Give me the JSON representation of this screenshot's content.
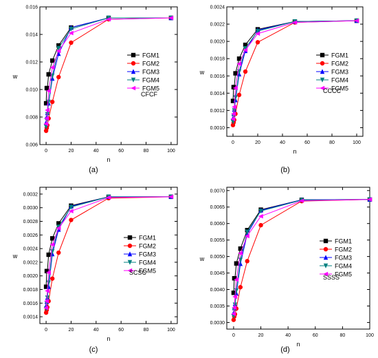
{
  "chart_data": [
    {
      "type": "line",
      "panel_label": "(a)",
      "plot_label": "CFCF",
      "xlabel": "n",
      "ylabel": "w",
      "xlim": [
        -5,
        105
      ],
      "ylim": [
        0.006,
        0.016
      ],
      "xticks": [
        "0",
        "20",
        "40",
        "60",
        "80",
        "100"
      ],
      "yticks": [
        "0.006",
        "0.008",
        "0.010",
        "0.012",
        "0.014",
        "0.016"
      ],
      "x": [
        0,
        0.5,
        1,
        2,
        5,
        10,
        20,
        50,
        100
      ],
      "series": [
        {
          "name": "FGM1",
          "values": [
            0.009,
            0.0101,
            0.0101,
            0.0111,
            0.0121,
            0.0132,
            0.0145,
            0.0152,
            0.0152
          ]
        },
        {
          "name": "FGM2",
          "values": [
            0.007,
            0.0072,
            0.0074,
            0.0079,
            0.0091,
            0.0109,
            0.0134,
            0.0151,
            0.0152
          ]
        },
        {
          "name": "FGM3",
          "values": [
            0.0076,
            0.008,
            0.0083,
            0.009,
            0.0108,
            0.0126,
            0.0145,
            0.0152,
            0.0152
          ]
        },
        {
          "name": "FGM4",
          "values": [
            0.0073,
            0.0078,
            0.0082,
            0.0091,
            0.011,
            0.013,
            0.0144,
            0.0152,
            0.0152
          ]
        },
        {
          "name": "FGM5",
          "values": [
            0.0075,
            0.0079,
            0.0085,
            0.0099,
            0.0116,
            0.0128,
            0.0141,
            0.0151,
            0.0152
          ]
        }
      ]
    },
    {
      "type": "line",
      "panel_label": "(b)",
      "plot_label": "CCCC",
      "xlabel": "n",
      "ylabel": "w",
      "xlim": [
        -5,
        105
      ],
      "ylim": [
        0.0009,
        0.0024
      ],
      "xticks": [
        "0",
        "20",
        "40",
        "60",
        "80",
        "100"
      ],
      "yticks": [
        "0.0010",
        "0.0012",
        "0.0014",
        "0.0016",
        "0.0018",
        "0.0020",
        "0.0022",
        "0.0024"
      ],
      "x": [
        0,
        0.5,
        1,
        2,
        5,
        10,
        20,
        50,
        100
      ],
      "series": [
        {
          "name": "FGM1",
          "values": [
            0.00131,
            0.00147,
            0.00147,
            0.00163,
            0.0018,
            0.00196,
            0.00214,
            0.00223,
            0.00224
          ]
        },
        {
          "name": "FGM2",
          "values": [
            0.00103,
            0.00106,
            0.00109,
            0.00116,
            0.00138,
            0.00165,
            0.00199,
            0.00222,
            0.00224
          ]
        },
        {
          "name": "FGM3",
          "values": [
            0.00111,
            0.00116,
            0.00121,
            0.00132,
            0.00162,
            0.00189,
            0.00213,
            0.00223,
            0.00224
          ]
        },
        {
          "name": "FGM4",
          "values": [
            0.00107,
            0.00114,
            0.0012,
            0.00135,
            0.00165,
            0.00192,
            0.00212,
            0.00223,
            0.00224
          ]
        },
        {
          "name": "FGM5",
          "values": [
            0.0011,
            0.00116,
            0.00124,
            0.00146,
            0.00174,
            0.0019,
            0.00209,
            0.00222,
            0.00224
          ]
        }
      ]
    },
    {
      "type": "line",
      "panel_label": "(c)",
      "plot_label": "SCSC",
      "xlabel": "n",
      "ylabel": "w",
      "xlim": [
        -5,
        105
      ],
      "ylim": [
        0.0013,
        0.0033
      ],
      "xticks": [
        "0",
        "20",
        "40",
        "60",
        "80",
        "100"
      ],
      "yticks": [
        "0.0014",
        "0.0016",
        "0.0018",
        "0.0020",
        "0.0022",
        "0.0024",
        "0.0026",
        "0.0028",
        "0.0030",
        "0.0032"
      ],
      "x": [
        0,
        0.5,
        1,
        2,
        5,
        10,
        20,
        50,
        100
      ],
      "series": [
        {
          "name": "FGM1",
          "values": [
            0.00184,
            0.00207,
            0.00207,
            0.00231,
            0.00255,
            0.00277,
            0.00303,
            0.00316,
            0.00316
          ]
        },
        {
          "name": "FGM2",
          "values": [
            0.00146,
            0.0015,
            0.00154,
            0.00163,
            0.00196,
            0.00234,
            0.00282,
            0.00314,
            0.00316
          ]
        },
        {
          "name": "FGM3",
          "values": [
            0.00156,
            0.00162,
            0.00168,
            0.00184,
            0.00232,
            0.00268,
            0.00302,
            0.00316,
            0.00316
          ]
        },
        {
          "name": "FGM4",
          "values": [
            0.00152,
            0.0016,
            0.00168,
            0.0019,
            0.00236,
            0.00272,
            0.00301,
            0.00316,
            0.00316
          ]
        },
        {
          "name": "FGM5",
          "values": [
            0.00153,
            0.00163,
            0.00178,
            0.00205,
            0.00246,
            0.0027,
            0.00295,
            0.00315,
            0.00316
          ]
        }
      ]
    },
    {
      "type": "line",
      "panel_label": "(d)",
      "plot_label": "SSSS",
      "xlabel": "n",
      "ylabel": "w",
      "xlim": [
        -5,
        100
      ],
      "ylim": [
        0.0028,
        0.0071
      ],
      "xticks": [
        "0",
        "20",
        "40",
        "60",
        "80",
        "100"
      ],
      "yticks": [
        "0.0030",
        "0.0035",
        "0.0040",
        "0.0045",
        "0.0050",
        "0.0055",
        "0.0060",
        "0.0065",
        "0.0070"
      ],
      "x": [
        0,
        0.5,
        1,
        2,
        5,
        10,
        20,
        50,
        100
      ],
      "series": [
        {
          "name": "FGM1",
          "values": [
            0.0039,
            0.00434,
            0.00434,
            0.00479,
            0.00524,
            0.0058,
            0.00642,
            0.00672,
            0.00673
          ]
        },
        {
          "name": "FGM2",
          "values": [
            0.00308,
            0.00318,
            0.00325,
            0.00342,
            0.00407,
            0.00486,
            0.00595,
            0.00668,
            0.00673
          ]
        },
        {
          "name": "FGM3",
          "values": [
            0.00329,
            0.00344,
            0.00356,
            0.00388,
            0.00478,
            0.00568,
            0.0064,
            0.00672,
            0.00673
          ]
        },
        {
          "name": "FGM4",
          "values": [
            0.0032,
            0.00338,
            0.00354,
            0.00397,
            0.0049,
            0.00575,
            0.00638,
            0.00671,
            0.00673
          ]
        },
        {
          "name": "FGM5",
          "values": [
            0.00326,
            0.00345,
            0.00378,
            0.0043,
            0.0051,
            0.00562,
            0.00622,
            0.00669,
            0.00673
          ]
        }
      ]
    }
  ],
  "series_styles": [
    {
      "color": "#000000",
      "marker": "square"
    },
    {
      "color": "#ff0000",
      "marker": "circle"
    },
    {
      "color": "#0000ff",
      "marker": "triangle-up"
    },
    {
      "color": "#008080",
      "marker": "triangle-down"
    },
    {
      "color": "#ff00ff",
      "marker": "triangle-left"
    }
  ]
}
